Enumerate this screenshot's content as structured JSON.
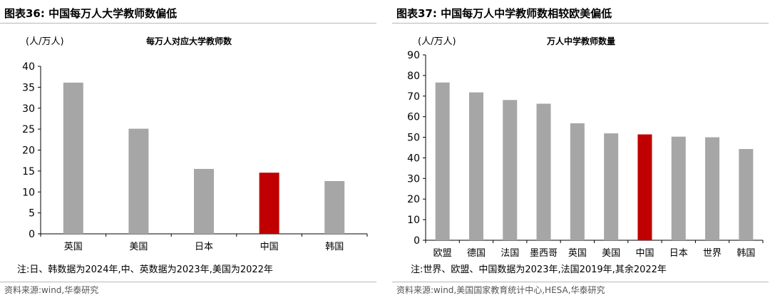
{
  "panels": [
    {
      "figure_title": "图表36:  中国每万人大学教师数偏低",
      "unit_label": "(人/万人)",
      "note": "注:日、韩数据为2024年,中、英数据为2023年,美国为2022年",
      "source": "资料来源:wind,华泰研究"
    },
    {
      "figure_title": "图表37:  中国每万人中学教师数相较欧美偏低",
      "unit_label": "(人/万人)",
      "note": "注:世界、欧盟、中国数据为2023年,法国2019年,其余2022年",
      "source": "资料来源:wind,美国国家教育统计中心,HESA,华泰研究"
    }
  ],
  "chart_data": [
    {
      "type": "bar",
      "title": "每万人对应大学教师数",
      "categories": [
        "英国",
        "美国",
        "日本",
        "中国",
        "韩国"
      ],
      "values": [
        36.1,
        25.1,
        15.5,
        14.6,
        12.6
      ],
      "colors": [
        "#a6a6a6",
        "#a6a6a6",
        "#a6a6a6",
        "#c00000",
        "#a6a6a6"
      ],
      "ylim": [
        0,
        40
      ],
      "yticks": [
        0,
        5,
        10,
        15,
        20,
        25,
        30,
        35,
        40
      ],
      "grid": false
    },
    {
      "type": "bar",
      "title": "万人中学教师数量",
      "categories": [
        "欧盟",
        "德国",
        "法国",
        "墨西哥",
        "英国",
        "美国",
        "中国",
        "日本",
        "世界",
        "韩国"
      ],
      "values": [
        76.6,
        71.8,
        68.1,
        66.3,
        56.8,
        51.9,
        51.4,
        50.3,
        50.0,
        44.3
      ],
      "colors": [
        "#a6a6a6",
        "#a6a6a6",
        "#a6a6a6",
        "#a6a6a6",
        "#a6a6a6",
        "#a6a6a6",
        "#c00000",
        "#a6a6a6",
        "#a6a6a6",
        "#a6a6a6"
      ],
      "ylim": [
        0,
        90
      ],
      "yticks": [
        0,
        10,
        20,
        30,
        40,
        50,
        60,
        70,
        80,
        90
      ],
      "grid": false
    }
  ]
}
